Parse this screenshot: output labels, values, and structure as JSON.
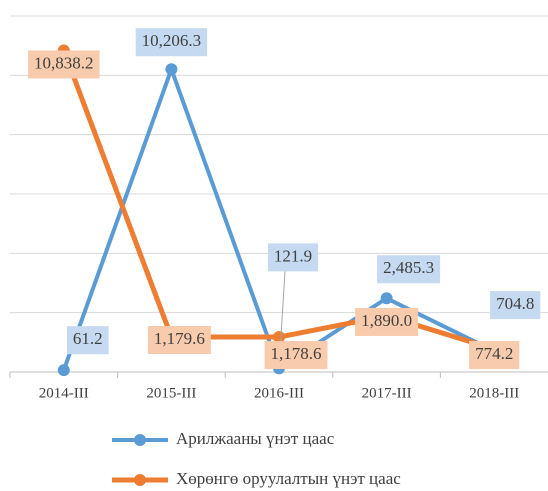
{
  "chart_data": {
    "type": "line",
    "categories": [
      "2014-III",
      "2015-III",
      "2016-III",
      "2017-III",
      "2018-III"
    ],
    "series": [
      {
        "name": "Арилжааны үнэт цаас",
        "color": "#5b9bd5",
        "label_fill": "#c5daf0",
        "values": [
          61.2,
          10206.3,
          121.9,
          2485.3,
          704.8
        ],
        "value_labels": [
          "61.2",
          "10,206.3",
          "121.9",
          "2,485.3",
          "704.8"
        ]
      },
      {
        "name": "Хөрөнгө оруулалтын үнэт цаас",
        "color": "#ed7d31",
        "label_fill": "#f8cbad",
        "values": [
          10838.2,
          1179.6,
          1178.6,
          1890.0,
          774.2
        ],
        "value_labels": [
          "10,838.2",
          "1,179.6",
          "1,178.6",
          "1,890.0",
          "774.2"
        ]
      }
    ],
    "ylim": [
      0,
      12000
    ],
    "yticks": [
      0,
      2000,
      4000,
      6000,
      8000,
      10000,
      12000
    ],
    "grid": true
  }
}
